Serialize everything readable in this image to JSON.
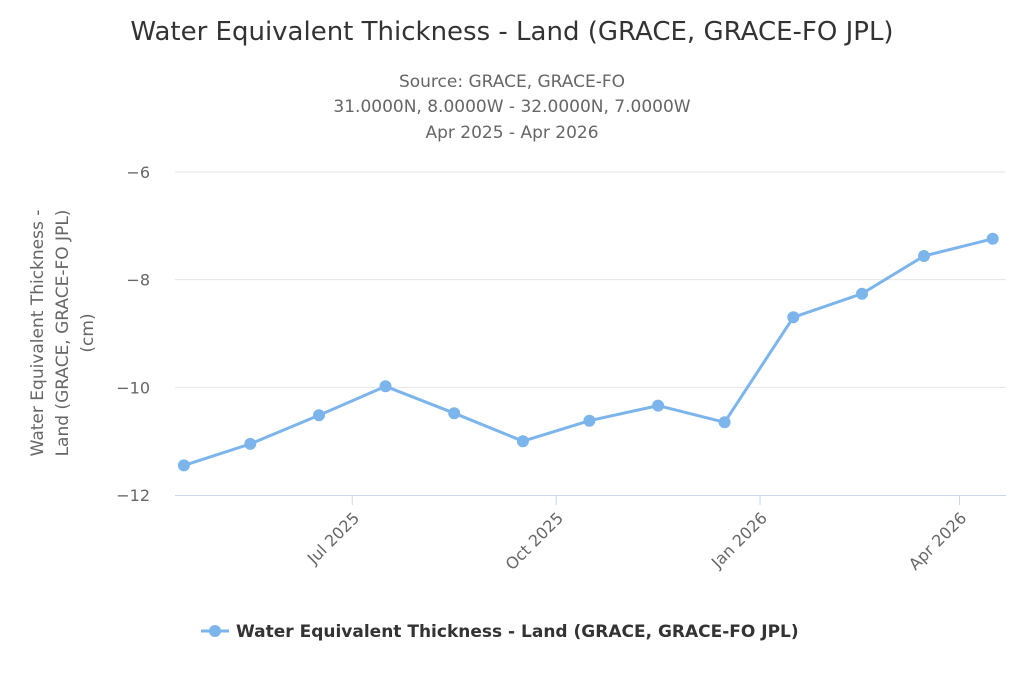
{
  "chart_data": {
    "type": "line",
    "title": "Water Equivalent Thickness - Land (GRACE, GRACE-FO JPL)",
    "subtitle_lines": [
      "Source: GRACE, GRACE-FO",
      "31.0000N, 8.0000W - 32.0000N, 7.0000W",
      "Apr 2025 - Apr 2026"
    ],
    "ylabel_lines": [
      "Water Equivalent Thickness -",
      "Land (GRACE, GRACE-FO JPL)",
      "(cm)"
    ],
    "xlabel": "",
    "ylim": [
      -12,
      -6
    ],
    "yticks": [
      -12,
      -10,
      -8,
      -6
    ],
    "ytick_labels": [
      "−12",
      "−10",
      "−8",
      "−6"
    ],
    "xlim": [
      "2025-04-12",
      "2026-04-22"
    ],
    "xticks": [
      "2025-07-01",
      "2025-10-01",
      "2026-01-01",
      "2026-04-01"
    ],
    "xtick_labels": [
      "Jul 2025",
      "Oct 2025",
      "Jan 2026",
      "Apr 2026"
    ],
    "grid": "horizontal",
    "legend_position": "bottom-center",
    "series": [
      {
        "name": "Water Equivalent Thickness - Land (GRACE, GRACE-FO JPL)",
        "color": "#7cb5ec",
        "x": [
          "2025-04-16",
          "2025-05-16",
          "2025-06-16",
          "2025-07-16",
          "2025-08-16",
          "2025-09-16",
          "2025-10-16",
          "2025-11-16",
          "2025-12-16",
          "2026-01-16",
          "2026-02-16",
          "2026-03-16",
          "2026-04-16"
        ],
        "y": [
          -11.45,
          -11.05,
          -10.52,
          -9.98,
          -10.48,
          -11.0,
          -10.62,
          -10.34,
          -10.65,
          -8.7,
          -8.26,
          -7.56,
          -7.24
        ]
      }
    ]
  }
}
